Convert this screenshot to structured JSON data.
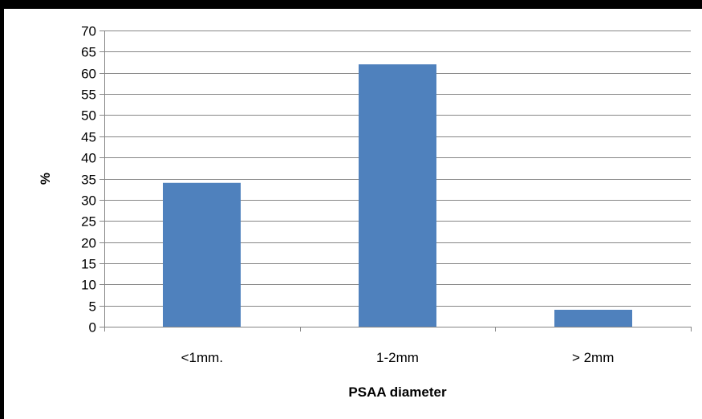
{
  "chart_data": {
    "type": "bar",
    "categories": [
      "<1mm.",
      "1-2mm",
      "> 2mm"
    ],
    "series": [
      {
        "values": [
          34,
          62,
          4
        ],
        "color": "#4f81bd"
      }
    ],
    "xlabel": "PSAA diameter",
    "ylabel": "%",
    "ylim": [
      0,
      70
    ],
    "yticks": [
      0,
      5,
      10,
      15,
      20,
      25,
      30,
      35,
      40,
      45,
      50,
      55,
      60,
      65,
      70
    ],
    "grid": true,
    "legend": false,
    "gridColor": "#868686"
  }
}
